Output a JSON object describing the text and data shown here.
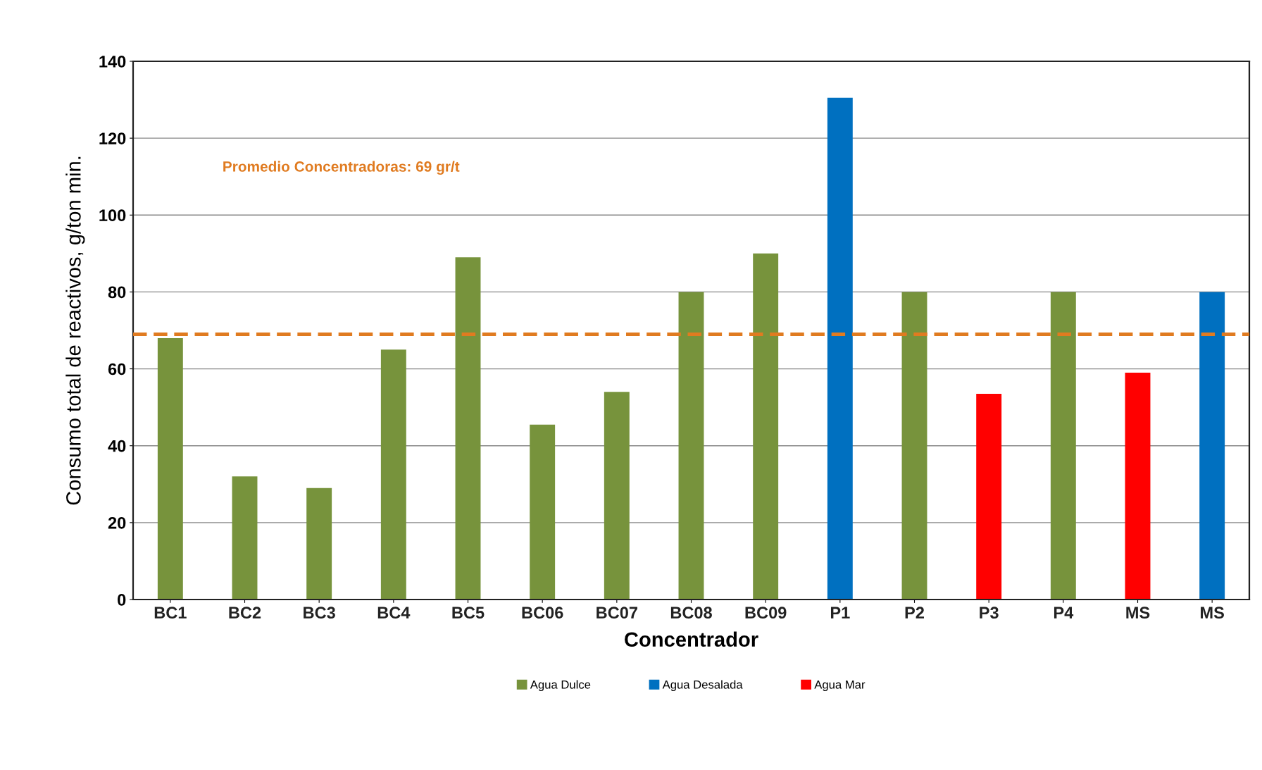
{
  "chart_data": {
    "type": "bar",
    "xlabel": "Concentrador",
    "ylabel": "Consumo total de reactivos, g/ton min.",
    "categories": [
      "BC1",
      "BC2",
      "BC3",
      "BC4",
      "BC5",
      "BC06",
      "BC07",
      "BC08",
      "BC09",
      "P1",
      "P2",
      "P3",
      "P4",
      "MS",
      "MS"
    ],
    "stacked": true,
    "series": [
      {
        "name": "Agua Dulce",
        "color": "#77933c",
        "values": [
          68,
          32,
          29,
          65,
          89,
          45.5,
          54,
          80,
          90,
          null,
          80,
          null,
          80,
          null,
          null
        ]
      },
      {
        "name": "Agua Desalada",
        "color": "#0070c0",
        "values": [
          null,
          null,
          null,
          null,
          null,
          null,
          null,
          null,
          null,
          130.5,
          null,
          null,
          null,
          null,
          80
        ]
      },
      {
        "name": "Agua Mar",
        "color": "#ff0000",
        "values": [
          null,
          null,
          null,
          null,
          null,
          null,
          null,
          null,
          null,
          null,
          null,
          53.5,
          null,
          59,
          null
        ]
      }
    ],
    "ylim": [
      0,
      140
    ],
    "yticks": [
      0,
      20,
      40,
      60,
      80,
      100,
      120,
      140
    ],
    "ref_lines": [
      {
        "axis": "y",
        "value": 69,
        "label": "Promedio Concentradoras: 69 gr/t",
        "color": "#e07b20",
        "line_style": "dashed"
      }
    ],
    "grid": "y",
    "legend": "bottom"
  }
}
